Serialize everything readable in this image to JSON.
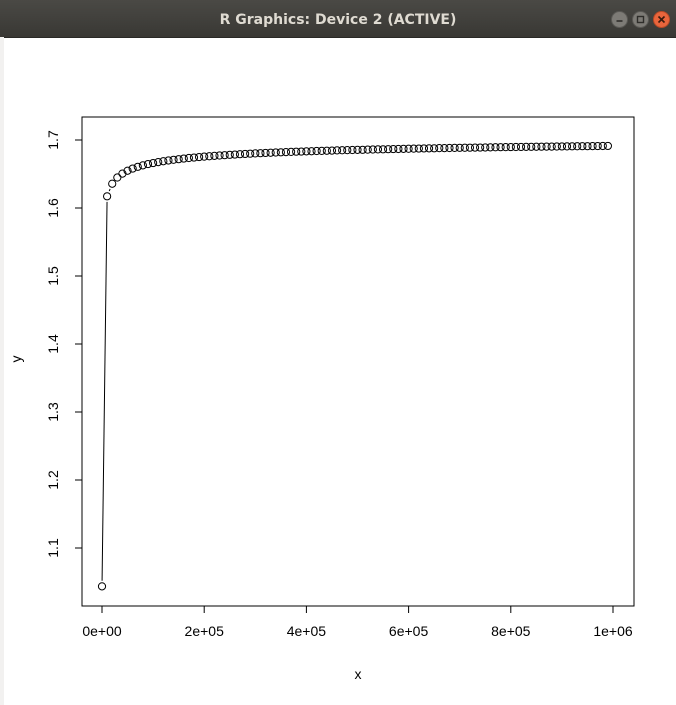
{
  "window": {
    "title": "R Graphics: Device 2 (ACTIVE)",
    "controls": [
      "minimize",
      "maximize",
      "close"
    ]
  },
  "chart_data": {
    "type": "line",
    "style": "both points and lines",
    "title": "",
    "xlabel": "x",
    "ylabel": "y",
    "xlim": [
      0,
      1000000
    ],
    "ylim": [
      1.05,
      1.72
    ],
    "x_ticks": [
      0,
      200000,
      400000,
      600000,
      800000,
      1000000
    ],
    "x_tick_labels": [
      "0e+00",
      "2e+05",
      "4e+05",
      "6e+05",
      "8e+05",
      "1e+06"
    ],
    "y_ticks": [
      1.1,
      1.2,
      1.3,
      1.4,
      1.5,
      1.6,
      1.7
    ],
    "y_tick_labels": [
      "1.1",
      "1.2",
      "1.3",
      "1.4",
      "1.5",
      "1.6",
      "1.7"
    ],
    "grid": false,
    "legend": "none",
    "series": [
      {
        "x": [
          1,
          10001,
          20001,
          30001,
          40001,
          50001,
          60001,
          70001,
          80001,
          90001,
          100001,
          110001,
          120001,
          130001,
          140001,
          150001,
          160001,
          170001,
          180001,
          190001,
          200001,
          210001,
          220001,
          230001,
          240001,
          250001,
          260001,
          270001,
          280001,
          290001,
          300001,
          310001,
          320001,
          330001,
          340001,
          350001,
          360001,
          370001,
          380001,
          390001,
          400001,
          410001,
          420001,
          430001,
          440001,
          450001,
          460001,
          470001,
          480001,
          490001,
          500001,
          510001,
          520001,
          530001,
          540001,
          550001,
          560001,
          570001,
          580001,
          590001,
          600001,
          610001,
          620001,
          630001,
          640001,
          650001,
          660001,
          670001,
          680001,
          690001,
          700001,
          710001,
          720001,
          730001,
          740001,
          750001,
          760001,
          770001,
          780001,
          790001,
          800001,
          810001,
          820001,
          830001,
          840001,
          850001,
          860001,
          870001,
          880001,
          890001,
          900001,
          910001,
          920001,
          930001,
          940001,
          950001,
          960001,
          970001,
          980001,
          990001
        ],
        "y": [
          1.0436,
          1.6172,
          1.6357,
          1.6448,
          1.6506,
          1.6548,
          1.658,
          1.6606,
          1.6627,
          1.6646,
          1.6661,
          1.6675,
          1.6688,
          1.6699,
          1.6709,
          1.6718,
          1.6727,
          1.6735,
          1.6742,
          1.6749,
          1.6755,
          1.6761,
          1.6767,
          1.6772,
          1.6777,
          1.6782,
          1.6786,
          1.6791,
          1.6795,
          1.6799,
          1.6803,
          1.6806,
          1.681,
          1.6813,
          1.6816,
          1.6819,
          1.6822,
          1.6825,
          1.6828,
          1.683,
          1.6833,
          1.6835,
          1.6838,
          1.684,
          1.6842,
          1.6844,
          1.6847,
          1.6849,
          1.6851,
          1.6853,
          1.6855,
          1.6856,
          1.6858,
          1.686,
          1.6862,
          1.6863,
          1.6865,
          1.6867,
          1.6868,
          1.687,
          1.6871,
          1.6873,
          1.6874,
          1.6876,
          1.6877,
          1.6878,
          1.688,
          1.6881,
          1.6882,
          1.6884,
          1.6885,
          1.6886,
          1.6887,
          1.6888,
          1.6889,
          1.689,
          1.6892,
          1.6893,
          1.6894,
          1.6895,
          1.6896,
          1.6897,
          1.6898,
          1.6899,
          1.69,
          1.6901,
          1.6902,
          1.6903,
          1.6903,
          1.6904,
          1.6905,
          1.6906,
          1.6907,
          1.6908,
          1.6909,
          1.6909,
          1.691,
          1.6911,
          1.6912,
          1.6913
        ]
      }
    ]
  }
}
